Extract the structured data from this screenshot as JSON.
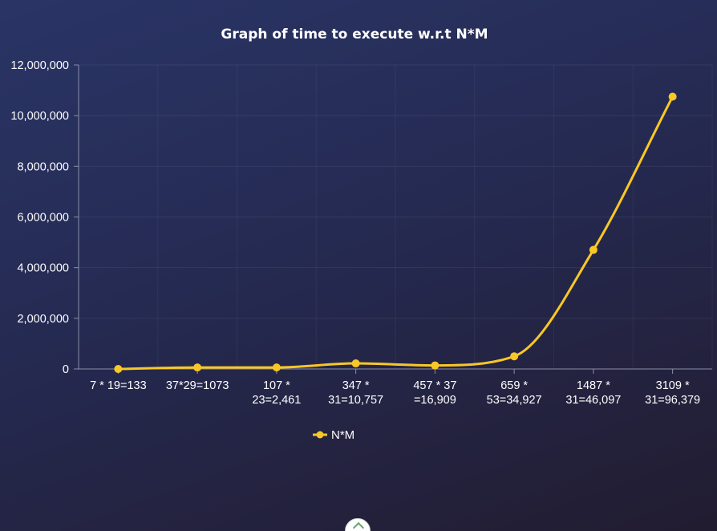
{
  "chart_data": {
    "type": "line",
    "title": "Graph of time to execute w.r.t N*M",
    "categories": [
      [
        "7 * 19=133"
      ],
      [
        "37*29=1073"
      ],
      [
        "107 *",
        "23=2,461"
      ],
      [
        "347 *",
        "31=10,757"
      ],
      [
        "457 * 37",
        "=16,909"
      ],
      [
        "659 *",
        "53=34,927"
      ],
      [
        "1487 *",
        "31=46,097"
      ],
      [
        "3109 *",
        "31=96,379"
      ]
    ],
    "series": [
      {
        "name": "N*M",
        "values": [
          0,
          60000,
          60000,
          220000,
          140000,
          500000,
          4700000,
          10750000
        ],
        "color": "#f9c825"
      }
    ],
    "y_ticks": [
      "0",
      "2,000,000",
      "4,000,000",
      "6,000,000",
      "8,000,000",
      "10,000,000",
      "12,000,000"
    ],
    "ylim": [
      0,
      12000000
    ],
    "grid": true,
    "legend_position": "bottom-center",
    "smooth": true
  }
}
